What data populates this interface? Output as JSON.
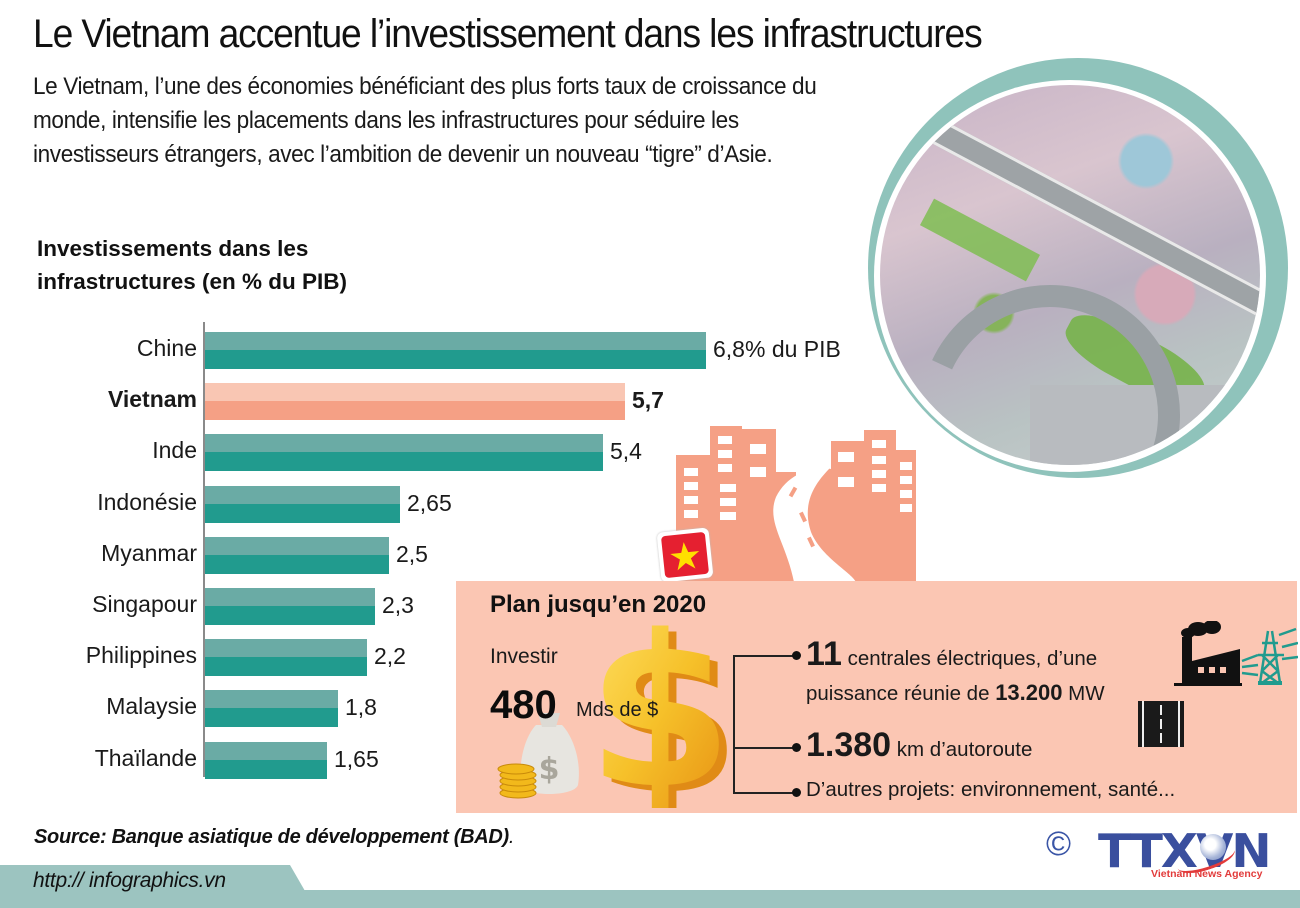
{
  "header": {
    "title": "Le Vietnam accentue l’investissement dans les infrastructures",
    "intro": "Le Vietnam, l’une des économies bénéficiant des plus forts taux de croissance du monde, intensifie les placements dans les infrastructures pour séduire les investisseurs étrangers, avec l’ambition de devenir un nouveau “tigre” d’Asie."
  },
  "chart": {
    "title_line1": "Investissements dans les",
    "title_line2": "infrastructures (en % du PIB)",
    "bars": [
      {
        "label": "Chine",
        "value": 6.8,
        "display": "6,8% du PIB",
        "highlight": false
      },
      {
        "label": "Vietnam",
        "value": 5.7,
        "display": "5,7",
        "highlight": true
      },
      {
        "label": "Inde",
        "value": 5.4,
        "display": "5,4",
        "highlight": false
      },
      {
        "label": "Indonésie",
        "value": 2.65,
        "display": "2,65",
        "highlight": false
      },
      {
        "label": "Myanmar",
        "value": 2.5,
        "display": "2,5",
        "highlight": false
      },
      {
        "label": "Singapour",
        "value": 2.3,
        "display": "2,3",
        "highlight": false
      },
      {
        "label": "Philippines",
        "value": 2.2,
        "display": "2,2",
        "highlight": false
      },
      {
        "label": "Malaysie",
        "value": 1.8,
        "display": "1,8",
        "highlight": false
      },
      {
        "label": "Thaïlande",
        "value": 1.65,
        "display": "1,65",
        "highlight": false
      }
    ]
  },
  "chart_data": {
    "type": "bar",
    "orientation": "horizontal",
    "title": "Investissements dans les infrastructures (en % du PIB)",
    "categories": [
      "Chine",
      "Vietnam",
      "Inde",
      "Indonésie",
      "Myanmar",
      "Singapour",
      "Philippines",
      "Malaysie",
      "Thaïlande"
    ],
    "values": [
      6.8,
      5.7,
      5.4,
      2.65,
      2.5,
      2.3,
      2.2,
      1.8,
      1.65
    ],
    "value_labels": [
      "6,8% du PIB",
      "5,7",
      "5,4",
      "2,65",
      "2,5",
      "2,3",
      "2,2",
      "1,8",
      "1,65"
    ],
    "unit": "% du PIB",
    "highlighted_category": "Vietnam",
    "xlabel": "",
    "ylabel": "",
    "xlim": [
      0,
      7
    ],
    "grid": false,
    "legend": null,
    "colors": {
      "default": "#219b8e",
      "default_light": "#6aaba5",
      "highlight": "#f5a085",
      "highlight_light": "#f9c6b3"
    }
  },
  "plan": {
    "title": "Plan jusqu’en 2020",
    "invest_label": "Investir",
    "invest_amount": "480",
    "invest_unit": "Mds de $",
    "items": [
      {
        "big": "11",
        "text_a": " centrales électriques, d’une",
        "text_b": "puissance réunie de ",
        "bold": "13.200",
        "text_c": " MW",
        "icon": "power-plant-icon"
      },
      {
        "big": "1.380",
        "text_a": " km d’autoroute",
        "icon": "highway-icon"
      },
      {
        "text_a": "D’autres projets: environnement, santé..."
      }
    ]
  },
  "footer": {
    "source_bold": "Source: Banque asiatique de développement (BAD)",
    "source_end": ".",
    "url": "http:// infographics.vn",
    "copyright": "©",
    "logo_text_a": "TTX",
    "logo_text_v": "V",
    "logo_text_b": "N",
    "logo_sub": "Vietnam News Agency"
  },
  "colors": {
    "teal": "#219b8e",
    "teal_light": "#6aaba5",
    "ring": "#8fc3bb",
    "salmon": "#f5a085",
    "peach_box": "#fbc6b3",
    "footer_band": "#9cc4c0",
    "logo_blue": "#3a4f9e",
    "logo_red": "#e23b3b"
  }
}
